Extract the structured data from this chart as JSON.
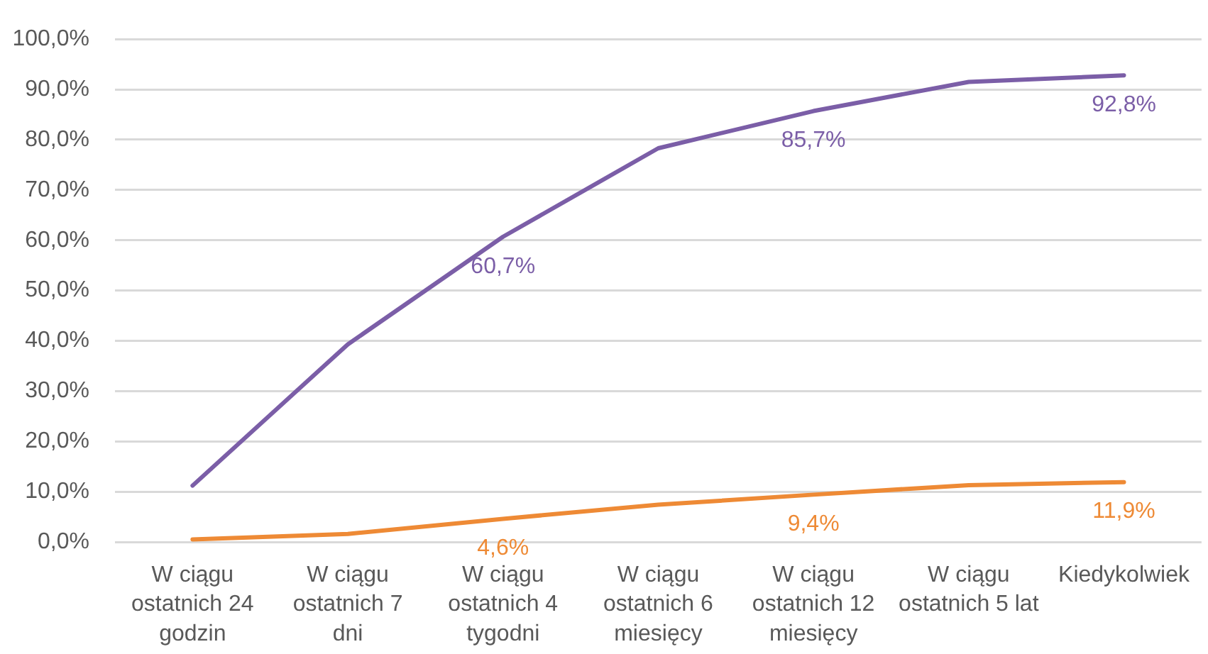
{
  "chart_data": {
    "type": "line",
    "categories": [
      "W ciągu ostatnich 24 godzin",
      "W ciągu ostatnich 7 dni",
      "W ciągu ostatnich 4 tygodni",
      "W ciągu ostatnich 6 miesięcy",
      "W ciągu ostatnich 12 miesięcy",
      "W ciągu ostatnich 5 lat",
      "Kiedykolwiek"
    ],
    "series": [
      {
        "color": "#7b5ea7",
        "values": [
          11.2,
          39.3,
          60.7,
          78.3,
          85.7,
          91.5,
          92.8
        ],
        "value_labels": [
          null,
          null,
          "60,7%",
          null,
          "85,7%",
          null,
          "92,8%"
        ]
      },
      {
        "color": "#ee8a35",
        "values": [
          0.5,
          1.6,
          4.6,
          7.4,
          9.4,
          11.3,
          11.9
        ],
        "value_labels": [
          null,
          null,
          "4,6%",
          null,
          "9,4%",
          null,
          "11,9%"
        ]
      }
    ],
    "ylim": [
      0,
      100
    ],
    "yticks": [
      {
        "value": 0,
        "label": "0,0%"
      },
      {
        "value": 10,
        "label": "10,0%"
      },
      {
        "value": 20,
        "label": "20,0%"
      },
      {
        "value": 30,
        "label": "30,0%"
      },
      {
        "value": 40,
        "label": "40,0%"
      },
      {
        "value": 50,
        "label": "50,0%"
      },
      {
        "value": 60,
        "label": "60,0%"
      },
      {
        "value": 70,
        "label": "70,0%"
      },
      {
        "value": 80,
        "label": "80,0%"
      },
      {
        "value": 90,
        "label": "90,0%"
      },
      {
        "value": 100,
        "label": "100,0%"
      }
    ],
    "grid": "y",
    "legend": false,
    "marker": "none",
    "line_style": "solid"
  }
}
